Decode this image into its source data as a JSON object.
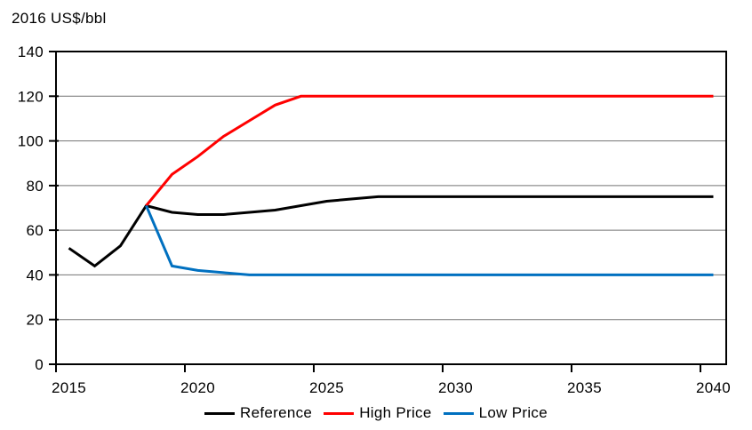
{
  "chart_data": {
    "type": "line",
    "title": "2016 US$/bbl",
    "x": [
      2015,
      2016,
      2017,
      2018,
      2019,
      2020,
      2021,
      2022,
      2023,
      2024,
      2025,
      2026,
      2027,
      2028,
      2029,
      2030,
      2031,
      2032,
      2033,
      2034,
      2035,
      2036,
      2037,
      2038,
      2039,
      2040
    ],
    "series": [
      {
        "name": "Reference",
        "color": "#000000",
        "values": [
          52,
          44,
          53,
          71,
          68,
          67,
          67,
          68,
          69,
          71,
          73,
          74,
          75,
          75,
          75,
          75,
          75,
          75,
          75,
          75,
          75,
          75,
          75,
          75,
          75,
          75
        ]
      },
      {
        "name": "High Price",
        "color": "#ff0000",
        "values": [
          null,
          null,
          null,
          71,
          85,
          93,
          102,
          109,
          116,
          120,
          120,
          120,
          120,
          120,
          120,
          120,
          120,
          120,
          120,
          120,
          120,
          120,
          120,
          120,
          120,
          120
        ]
      },
      {
        "name": "Low Price",
        "color": "#0070c0",
        "values": [
          null,
          null,
          null,
          71,
          44,
          42,
          41,
          40,
          40,
          40,
          40,
          40,
          40,
          40,
          40,
          40,
          40,
          40,
          40,
          40,
          40,
          40,
          40,
          40,
          40,
          40
        ]
      }
    ],
    "ylim": [
      0,
      140
    ],
    "yticks": [
      0,
      20,
      40,
      60,
      80,
      100,
      120,
      140
    ],
    "xticks": [
      2015,
      2020,
      2025,
      2030,
      2035,
      2040
    ],
    "grid": true,
    "grid_color": "#737373",
    "axis_color": "#000000",
    "legend_position": "bottom",
    "xlabel": "",
    "ylabel": ""
  }
}
